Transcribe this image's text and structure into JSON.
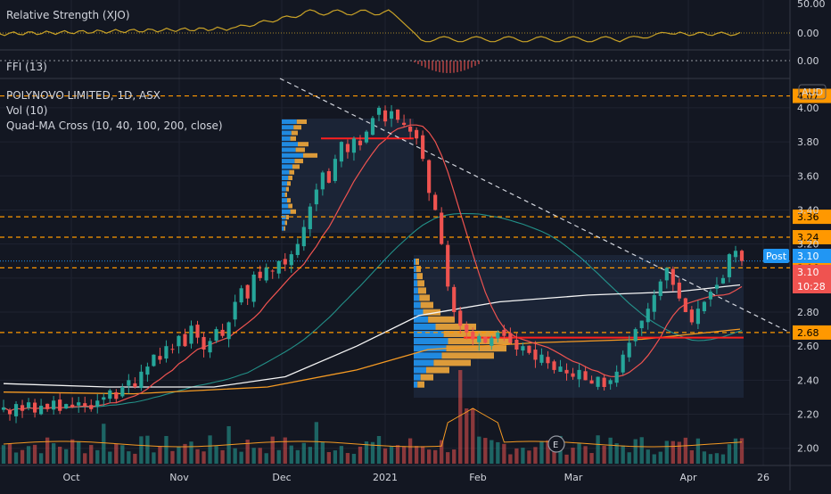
{
  "colors": {
    "bg": "#131722",
    "grid": "#1f2330",
    "text": "#d1d4dc",
    "up": "#26a69a",
    "down": "#ef5350",
    "rs": "#c9a227",
    "ma10": "#ef5350",
    "ma40": "#26a69a",
    "ma100": "#f5f5f5",
    "ma200": "#f59a23",
    "orange_level": "#ff9800",
    "red_level": "#ff1f1f",
    "trend": "#d1d4dc",
    "post": "#2196f3",
    "vp_up": "#2196f3",
    "vp_down": "#f2a83b"
  },
  "labels": {
    "rs_title": "Relative Strength (XJO)",
    "ffi_title": "FFI (13)",
    "symbol": "POLYNOVO LIMITED, 1D, ASX",
    "vol": "Vol (10)",
    "quadma": "Quad-MA Cross (10, 40, 100, 200, close)",
    "currency": "AUD",
    "post_label": "Post",
    "post_price": "3.10",
    "last_price": "3.10",
    "countdown": "10:28",
    "rs_ticks": [
      "50.00",
      "0.00"
    ],
    "ffi_tick": "0.00",
    "earnings": "E"
  },
  "chart_data": {
    "type": "candlestick",
    "title": "POLYNOVO LIMITED, 1D, ASX",
    "currency": "AUD",
    "x_ticks": [
      "Oct",
      "Nov",
      "Dec",
      "2021",
      "Feb",
      "Mar",
      "Apr",
      "26"
    ],
    "y_ticks": [
      4.0,
      3.8,
      3.6,
      3.4,
      3.2,
      3.0,
      2.8,
      2.6,
      2.4,
      2.2,
      2.0
    ],
    "ylim": [
      1.92,
      4.12
    ],
    "price_levels": [
      {
        "value": 4.07,
        "label": "4.07",
        "color": "#ff9800"
      },
      {
        "value": 3.36,
        "label": "3.36",
        "color": "#ff9800"
      },
      {
        "value": 3.24,
        "label": "3.24",
        "color": "#ff9800"
      },
      {
        "value": 3.06,
        "label": "3.06",
        "color": "#ff9800"
      },
      {
        "value": 2.68,
        "label": "2.68",
        "color": "#ff9800"
      }
    ],
    "horizontal_lines": [
      {
        "value": 3.82,
        "color": "#ff1f1f"
      },
      {
        "value": 2.65,
        "color": "#ff1f1f"
      }
    ],
    "trendline": {
      "from": [
        2020.905,
        4.45
      ],
      "to": [
        2021.34,
        2.68
      ],
      "style": "dashed"
    },
    "last_price": 3.1,
    "post_price": 3.1,
    "closes": [
      2.24,
      2.2,
      2.26,
      2.22,
      2.27,
      2.21,
      2.25,
      2.23,
      2.28,
      2.22,
      2.26,
      2.24,
      2.27,
      2.25,
      2.23,
      2.28,
      2.3,
      2.34,
      2.29,
      2.36,
      2.4,
      2.36,
      2.45,
      2.48,
      2.55,
      2.52,
      2.6,
      2.58,
      2.66,
      2.6,
      2.72,
      2.65,
      2.58,
      2.63,
      2.7,
      2.66,
      2.74,
      2.86,
      2.94,
      2.88,
      3.02,
      3.0,
      3.06,
      3.04,
      3.1,
      3.08,
      3.14,
      3.2,
      3.3,
      3.42,
      3.52,
      3.62,
      3.56,
      3.7,
      3.8,
      3.74,
      3.82,
      3.78,
      3.86,
      3.94,
      4.0,
      3.92,
      3.98,
      3.93,
      3.9,
      3.86,
      3.82,
      3.7,
      3.5,
      3.4,
      3.2,
      2.95,
      2.8,
      2.72,
      2.68,
      2.64,
      2.66,
      2.62,
      2.65,
      2.68,
      2.66,
      2.62,
      2.58,
      2.6,
      2.56,
      2.52,
      2.55,
      2.5,
      2.46,
      2.48,
      2.44,
      2.42,
      2.46,
      2.4,
      2.38,
      2.42,
      2.36,
      2.4,
      2.45,
      2.55,
      2.62,
      2.7,
      2.75,
      2.82,
      2.9,
      2.98,
      3.06,
      2.96,
      2.88,
      2.8,
      2.74,
      2.82,
      2.86,
      2.92,
      2.96,
      3.0,
      3.14,
      3.16,
      3.1
    ]
  }
}
